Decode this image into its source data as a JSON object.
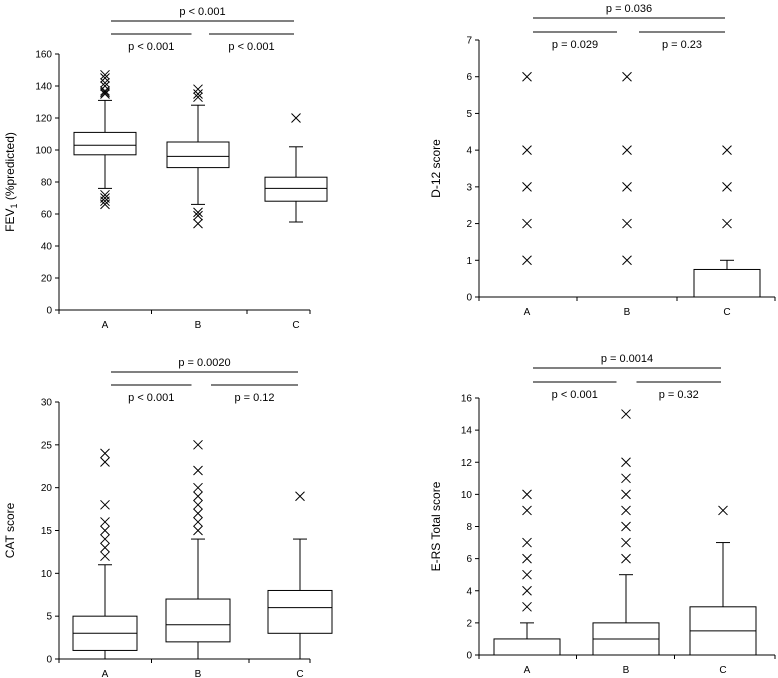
{
  "chart_data": [
    {
      "type": "box",
      "ylabel": "FEV",
      "ylabel_sub": "1",
      "ylabel_rest": " (%predicted)",
      "ylim": [
        0,
        160
      ],
      "yticks": [
        0,
        20,
        40,
        60,
        80,
        100,
        120,
        140,
        160
      ],
      "categories": [
        "A",
        "B",
        "C"
      ],
      "boxes": [
        {
          "category": "A",
          "q1": 97,
          "median": 103,
          "q3": 111,
          "whisker_low": 76,
          "whisker_high": 131,
          "outliers": [
            66,
            68,
            70,
            72,
            135,
            136,
            137,
            140,
            142,
            145,
            147
          ]
        },
        {
          "category": "B",
          "q1": 89,
          "median": 96,
          "q3": 105,
          "whisker_low": 66,
          "whisker_high": 128,
          "outliers": [
            54,
            59,
            61,
            133,
            135,
            138
          ]
        },
        {
          "category": "C",
          "q1": 68,
          "median": 76,
          "q3": 83,
          "whisker_low": 55,
          "whisker_high": 102,
          "outliers": [
            120
          ]
        }
      ],
      "comparisons": [
        {
          "from": 0,
          "to": 1,
          "label": "p < 0.001",
          "level": 0
        },
        {
          "from": 1,
          "to": 2,
          "label": "p < 0.001",
          "level": 0
        },
        {
          "from": 0,
          "to": 2,
          "label": "p < 0.001",
          "level": 1
        }
      ]
    },
    {
      "type": "box",
      "ylabel": "D-12 score",
      "ylim": [
        0,
        7
      ],
      "yticks": [
        0,
        1,
        2,
        3,
        4,
        5,
        6,
        7
      ],
      "categories": [
        "A",
        "B",
        "C"
      ],
      "boxes": [
        {
          "category": "A",
          "q1": 0,
          "median": 0,
          "q3": 0,
          "whisker_low": 0,
          "whisker_high": 0,
          "outliers": [
            1,
            2,
            3,
            4,
            6
          ]
        },
        {
          "category": "B",
          "q1": 0,
          "median": 0,
          "q3": 0,
          "whisker_low": 0,
          "whisker_high": 0,
          "outliers": [
            1,
            2,
            3,
            4,
            6
          ]
        },
        {
          "category": "C",
          "q1": 0,
          "median": 0,
          "q3": 0.75,
          "whisker_low": 0,
          "whisker_high": 1,
          "outliers": [
            2,
            3,
            4
          ]
        }
      ],
      "comparisons": [
        {
          "from": 0,
          "to": 1,
          "label": "p = 0.029",
          "level": 0
        },
        {
          "from": 1,
          "to": 2,
          "label": "p = 0.23",
          "level": 0
        },
        {
          "from": 0,
          "to": 2,
          "label": "p = 0.036",
          "level": 1
        }
      ]
    },
    {
      "type": "box",
      "ylabel": "CAT score",
      "ylim": [
        0,
        30
      ],
      "yticks": [
        0,
        5,
        10,
        15,
        20,
        25,
        30
      ],
      "categories": [
        "A",
        "B",
        "C"
      ],
      "boxes": [
        {
          "category": "A",
          "q1": 1,
          "median": 3,
          "q3": 5,
          "whisker_low": 0,
          "whisker_high": 11,
          "outliers": [
            12,
            13,
            14,
            15,
            16,
            18,
            23,
            24
          ]
        },
        {
          "category": "B",
          "q1": 2,
          "median": 4,
          "q3": 7,
          "whisker_low": 0,
          "whisker_high": 14,
          "outliers": [
            15,
            16,
            17,
            18,
            19,
            20,
            22,
            25
          ]
        },
        {
          "category": "C",
          "q1": 3,
          "median": 6,
          "q3": 8,
          "whisker_low": 0,
          "whisker_high": 14,
          "outliers": [
            19
          ]
        }
      ],
      "comparisons": [
        {
          "from": 0,
          "to": 1,
          "label": "p < 0.001",
          "level": 0
        },
        {
          "from": 1,
          "to": 2,
          "label": "p = 0.12",
          "level": 0
        },
        {
          "from": 0,
          "to": 2,
          "label": "p = 0.0020",
          "level": 1
        }
      ]
    },
    {
      "type": "box",
      "ylabel": "E-RS Total score",
      "ylim": [
        0,
        16
      ],
      "yticks": [
        0,
        2,
        4,
        6,
        8,
        10,
        12,
        14,
        16
      ],
      "categories": [
        "A",
        "B",
        "C"
      ],
      "boxes": [
        {
          "category": "A",
          "q1": 0,
          "median": 0,
          "q3": 1,
          "whisker_low": 0,
          "whisker_high": 2,
          "outliers": [
            3,
            4,
            5,
            6,
            7,
            9,
            10
          ]
        },
        {
          "category": "B",
          "q1": 0,
          "median": 1,
          "q3": 2,
          "whisker_low": 0,
          "whisker_high": 5,
          "outliers": [
            6,
            7,
            8,
            9,
            10,
            11,
            12,
            15
          ]
        },
        {
          "category": "C",
          "q1": 0,
          "median": 1.5,
          "q3": 3,
          "whisker_low": 0,
          "whisker_high": 7,
          "outliers": [
            9
          ]
        }
      ],
      "comparisons": [
        {
          "from": 0,
          "to": 1,
          "label": "p < 0.001",
          "level": 0
        },
        {
          "from": 1,
          "to": 2,
          "label": "p = 0.32",
          "level": 0
        },
        {
          "from": 0,
          "to": 2,
          "label": "p = 0.0014",
          "level": 1
        }
      ]
    }
  ]
}
